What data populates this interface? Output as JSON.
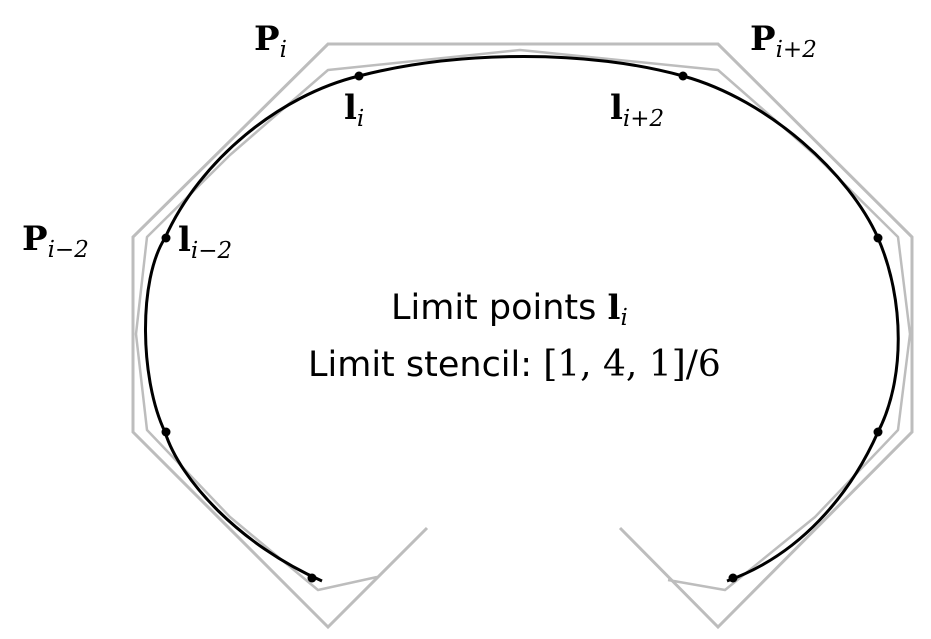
{
  "colors": {
    "control_polygon": "#bdbdbd",
    "limit_curve": "#000000",
    "points": "#000000",
    "background": "#ffffff"
  },
  "labels": {
    "p_i": {
      "base": "P",
      "sub": "i"
    },
    "p_i_plus_2": {
      "base": "P",
      "sub": "i+2"
    },
    "p_i_minus_2": {
      "base": "P",
      "sub": "i−2"
    },
    "l_i": {
      "base": "l",
      "sub": "i"
    },
    "l_i_plus_2": {
      "base": "l",
      "sub": "i+2"
    },
    "l_i_minus_2": {
      "base": "l",
      "sub": "i−2"
    }
  },
  "caption": {
    "line1_text": "Limit points ",
    "line1_symbol": "l",
    "line1_sub": "i",
    "line2_text": "Limit stencil: ",
    "line2_math": "[1, 4, 1]/6"
  }
}
